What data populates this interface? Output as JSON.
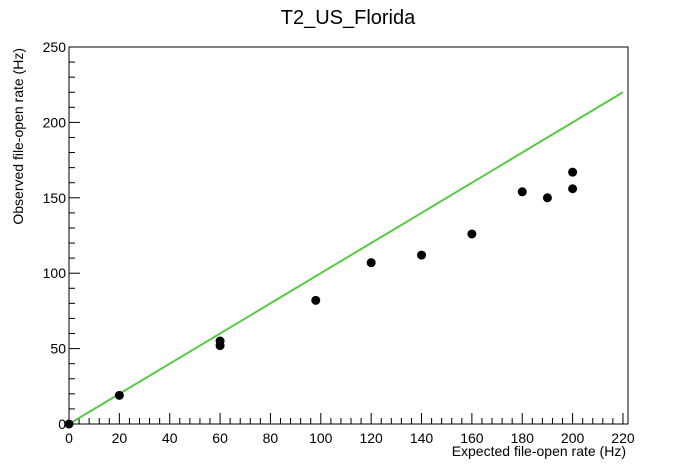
{
  "chart_data": {
    "type": "scatter",
    "title": "T2_US_Florida",
    "xlabel": "Expected file-open rate (Hz)",
    "ylabel": "Observed file-open rate (Hz)",
    "xlim": [
      0,
      222
    ],
    "ylim": [
      0,
      250
    ],
    "xticks": [
      0,
      20,
      40,
      60,
      80,
      100,
      120,
      140,
      160,
      180,
      200,
      220
    ],
    "yticks": [
      0,
      50,
      100,
      150,
      200,
      250
    ],
    "grid": false,
    "points": [
      {
        "x": 0,
        "y": 0
      },
      {
        "x": 20,
        "y": 19
      },
      {
        "x": 60,
        "y": 52
      },
      {
        "x": 60,
        "y": 55
      },
      {
        "x": 98,
        "y": 82
      },
      {
        "x": 120,
        "y": 107
      },
      {
        "x": 140,
        "y": 112
      },
      {
        "x": 160,
        "y": 126
      },
      {
        "x": 180,
        "y": 154
      },
      {
        "x": 190,
        "y": 150
      },
      {
        "x": 200,
        "y": 156
      },
      {
        "x": 200,
        "y": 167
      }
    ],
    "reference_line": {
      "x": [
        0,
        220
      ],
      "y": [
        0,
        220
      ],
      "color": "#57c945"
    },
    "marker_color": "#000000"
  }
}
